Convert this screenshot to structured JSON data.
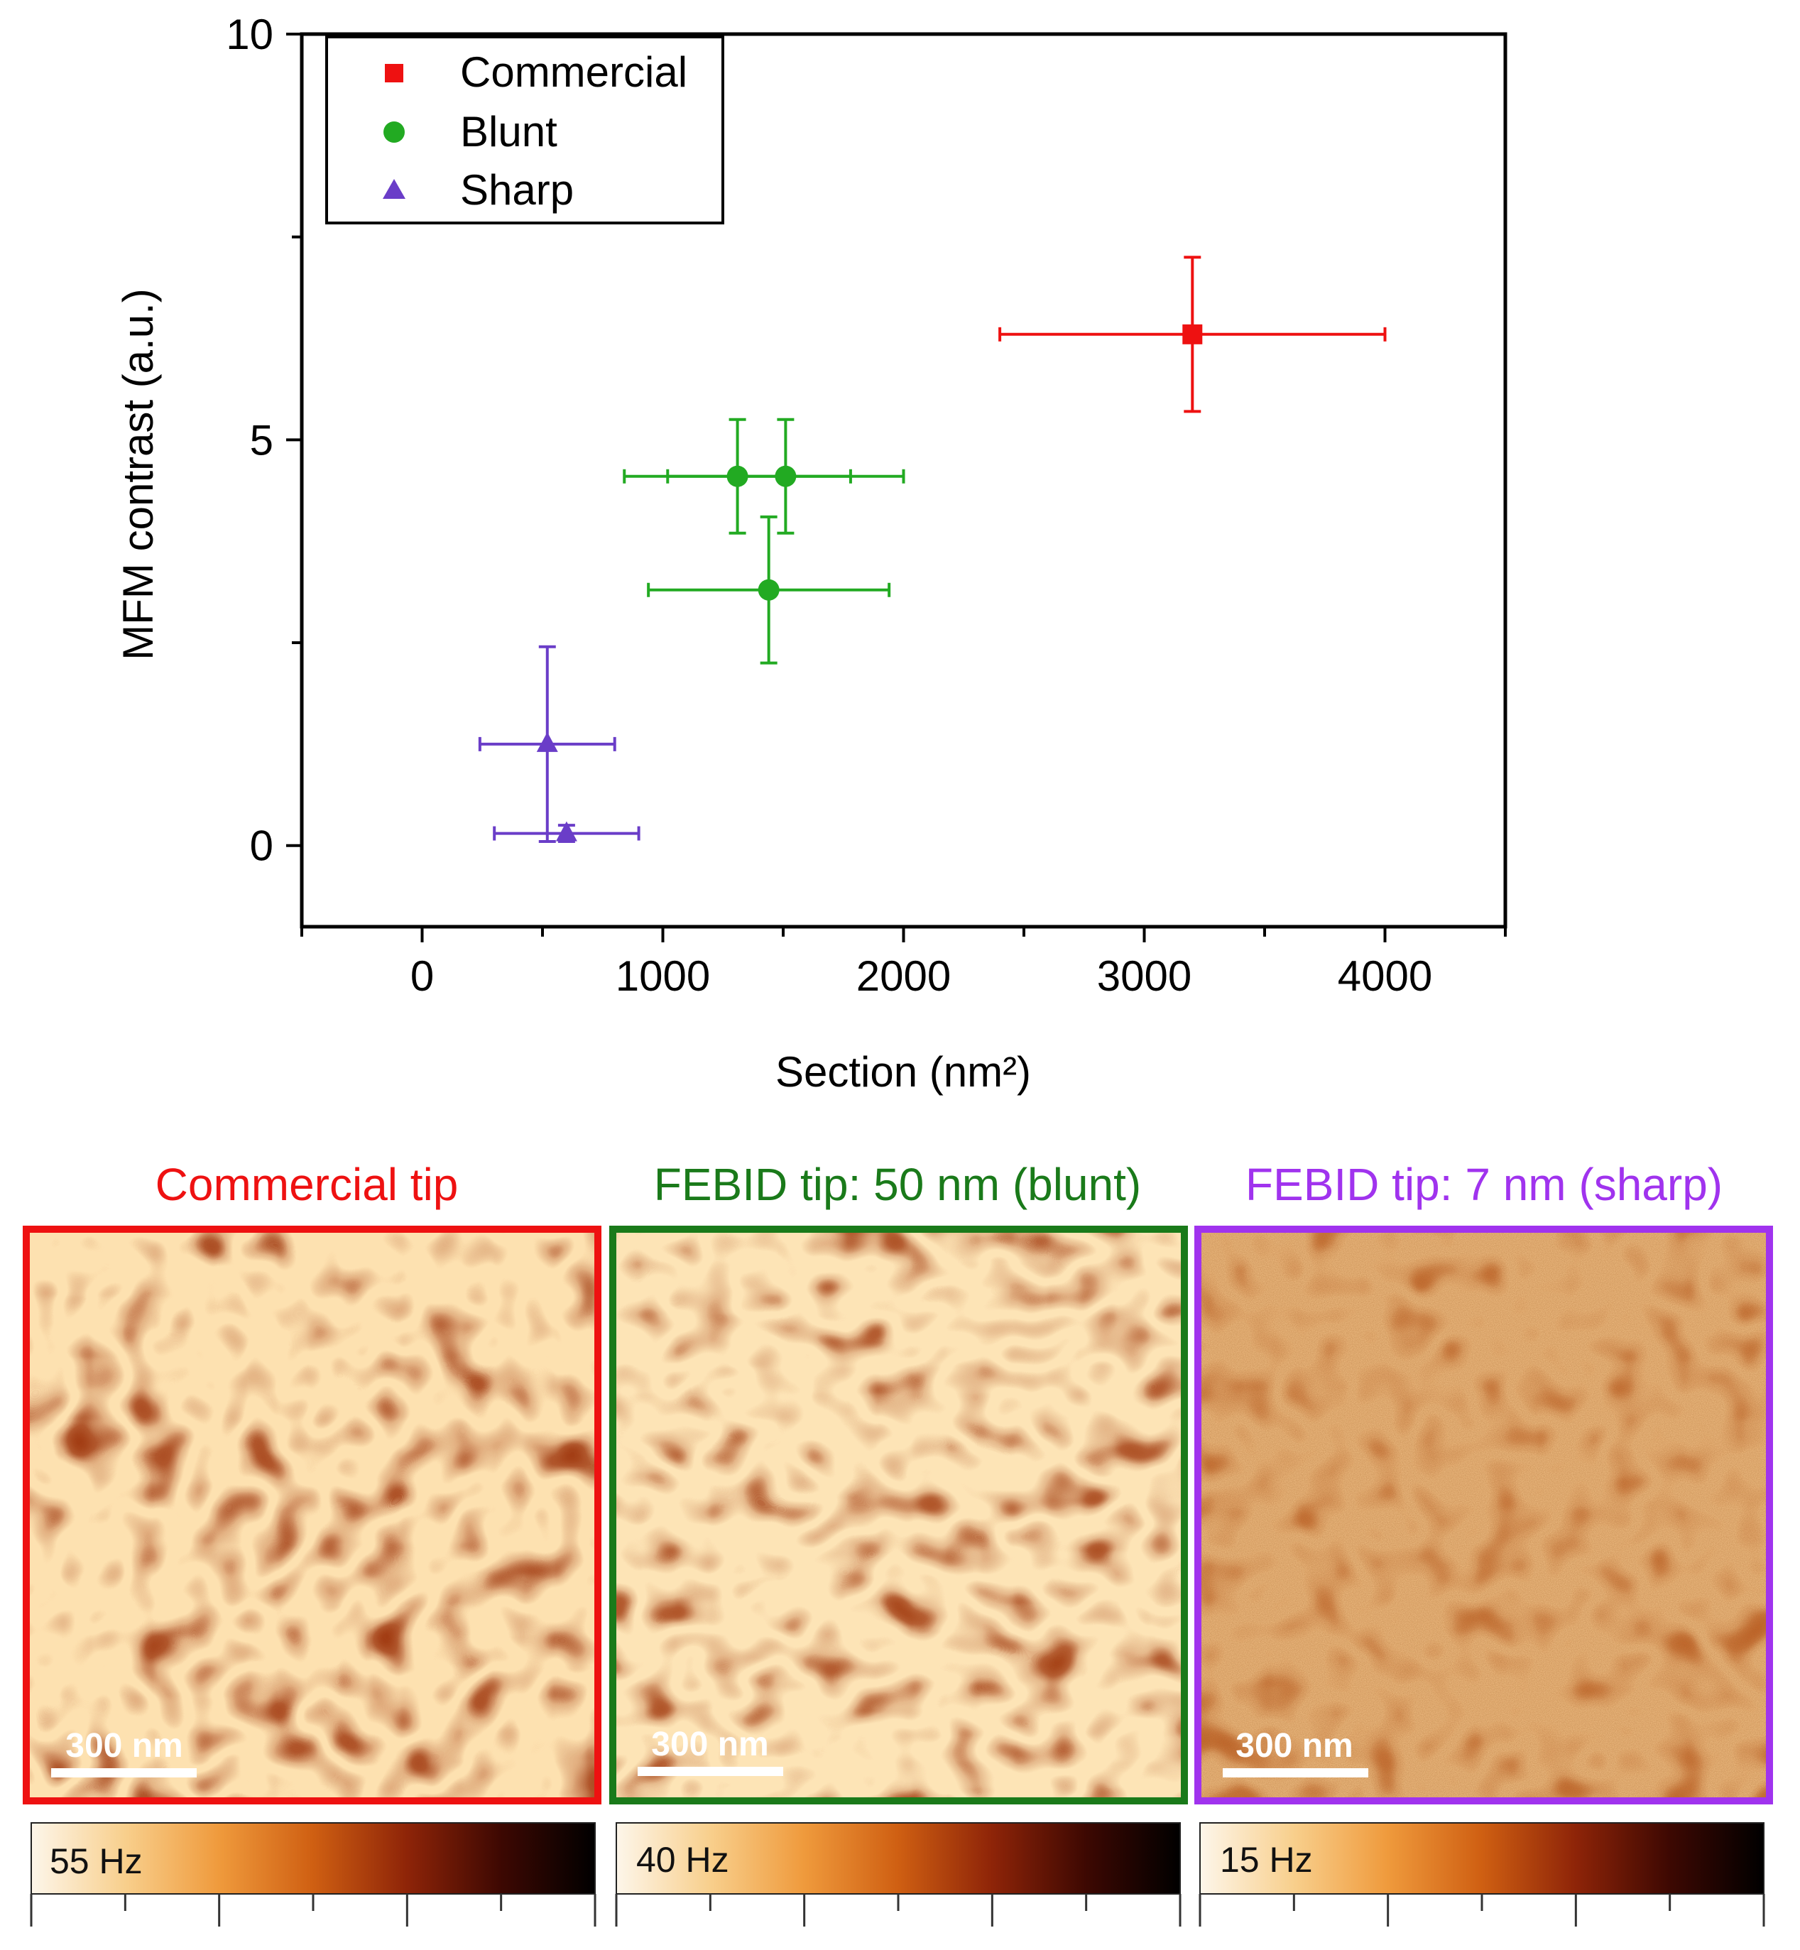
{
  "chart_data": {
    "type": "scatter",
    "title": "",
    "xlabel": "Section (nm²)",
    "ylabel": "MFM contrast (a.u.)",
    "xlim": [
      -500,
      4500
    ],
    "ylim": [
      -1,
      10
    ],
    "xticks": [
      0,
      1000,
      2000,
      3000,
      4000
    ],
    "yticks": [
      0,
      5,
      10
    ],
    "xtick_labels": [
      "0",
      "1000",
      "2000",
      "3000",
      "4000"
    ],
    "ytick_labels": [
      "0",
      "5",
      "10"
    ],
    "legend_position": "top-left",
    "series": [
      {
        "name": "Commercial",
        "marker": "square",
        "color": "#ee1111",
        "points": [
          {
            "x": 3200,
            "y": 6.3,
            "xerr": 800,
            "yerr": 0.95
          }
        ]
      },
      {
        "name": "Blunt",
        "marker": "circle",
        "color": "#22aa22",
        "points": [
          {
            "x": 1310,
            "y": 4.55,
            "xerr": 470,
            "yerr": 0.7
          },
          {
            "x": 1510,
            "y": 4.55,
            "xerr": 490,
            "yerr": 0.7
          },
          {
            "x": 1440,
            "y": 3.15,
            "xerr": 500,
            "yerr": 0.9
          }
        ]
      },
      {
        "name": "Sharp",
        "marker": "triangle",
        "color": "#6a3dc8",
        "points": [
          {
            "x": 520,
            "y": 1.25,
            "xerr": 280,
            "yerr": 1.2
          },
          {
            "x": 600,
            "y": 0.15,
            "xerr": 300,
            "yerr": 0.1
          }
        ]
      }
    ]
  },
  "mfm_panels": [
    {
      "title": "Commercial tip",
      "scale_bar": "300 nm",
      "colorbar_label": "55 Hz",
      "border_color": "#ee1111",
      "title_color": "#ee1111"
    },
    {
      "title": "FEBID tip: 50 nm (blunt)",
      "scale_bar": "300 nm",
      "colorbar_label": "40 Hz",
      "border_color": "#1a7a1a",
      "title_color": "#1a7a1a"
    },
    {
      "title": "FEBID tip: 7 nm (sharp)",
      "scale_bar": "300 nm",
      "colorbar_label": "15 Hz",
      "border_color": "#a033ee",
      "title_color": "#a033ee"
    }
  ],
  "colormap": [
    "#fdf6ea",
    "#f8cf8c",
    "#ef9a3c",
    "#cf5f12",
    "#8e2408",
    "#3d0802",
    "#000000"
  ]
}
